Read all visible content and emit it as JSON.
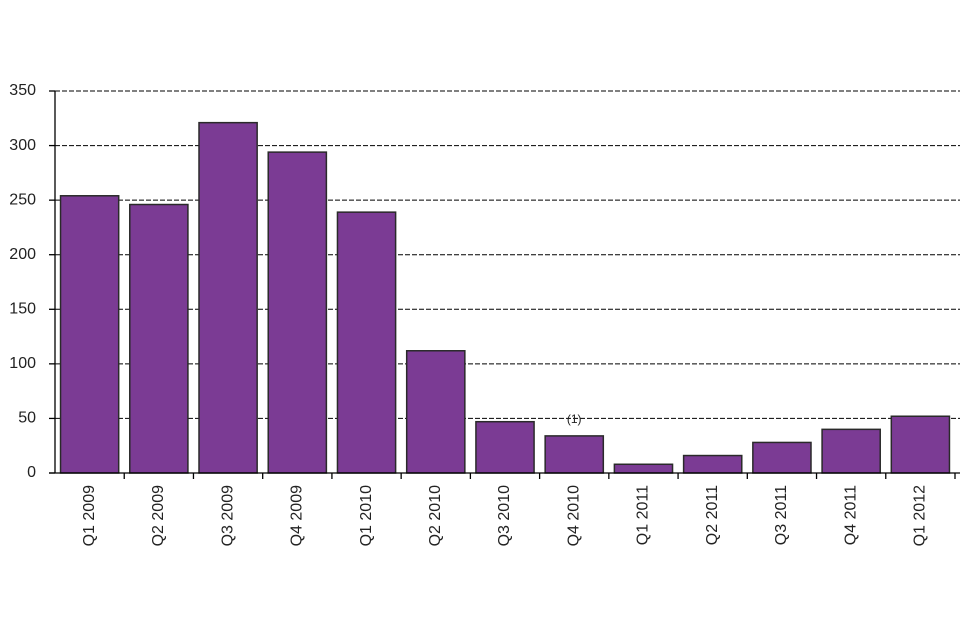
{
  "chart_data": {
    "type": "bar",
    "categories": [
      "Q1 2009",
      "Q2 2009",
      "Q3 2009",
      "Q4 2009",
      "Q1 2010",
      "Q2 2010",
      "Q3 2010",
      "Q4 2010",
      "Q1 2011",
      "Q2 2011",
      "Q3 2011",
      "Q4 2011",
      "Q1 2012"
    ],
    "values": [
      254,
      246,
      321,
      294,
      239,
      112,
      47,
      34,
      8,
      16,
      28,
      40,
      52
    ],
    "color": "#7b3b94",
    "ylim": [
      0,
      350
    ],
    "yticks": [
      0,
      50,
      100,
      150,
      200,
      250,
      300,
      350
    ],
    "grid": true,
    "annotations": [
      {
        "text": "(1)",
        "category": "Q4 2010"
      }
    ]
  }
}
